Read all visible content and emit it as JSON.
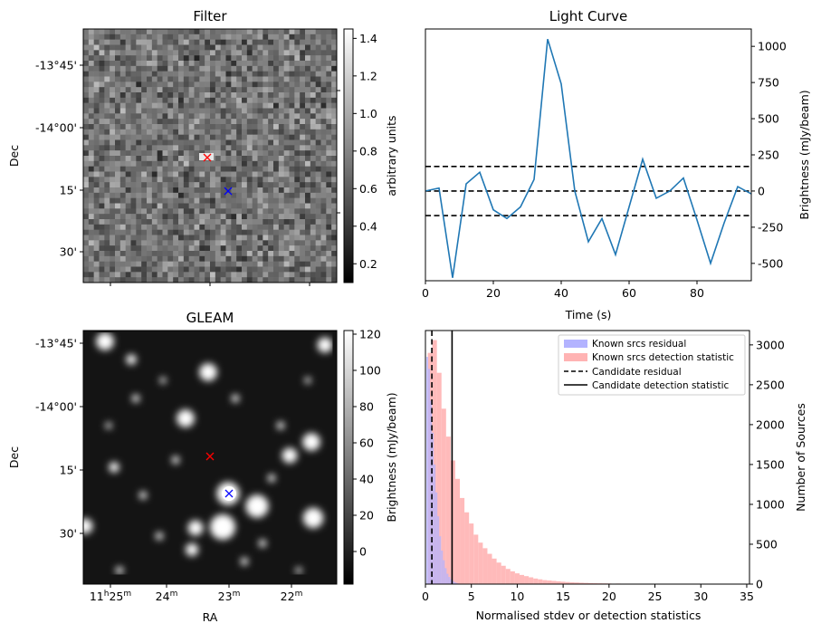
{
  "colors": {
    "lightcurve": "#1f77b4",
    "known_residual": "#b3b3ff",
    "known_detection": "#ffb3b3",
    "red_marker": "#ff0000",
    "blue_marker": "#0000ff"
  },
  "chart_data": [
    {
      "id": "filter",
      "type": "heatmap",
      "title": "Filter",
      "ylabel": "Dec",
      "xlabel": "",
      "yticks": [
        "-13°45'",
        "-14°00'",
        "15'",
        "30'"
      ],
      "xticks": [],
      "colormap": "gray",
      "colorbar": {
        "label": "arbitrary units",
        "range": [
          0.1,
          1.45
        ],
        "ticks": [
          "0.2",
          "0.4",
          "0.6",
          "0.8",
          "1.0",
          "1.2",
          "1.4"
        ]
      },
      "markers": [
        {
          "symbol": "x",
          "color": "red"
        },
        {
          "symbol": "x",
          "color": "blue"
        }
      ]
    },
    {
      "id": "lightcurve",
      "type": "line",
      "title": "Light Curve",
      "xlabel": "Time (s)",
      "ylabel": "Brightness (mJy/beam)",
      "xlim": [
        0,
        96
      ],
      "ylim": [
        -620,
        1120
      ],
      "xticks": [
        "0",
        "20",
        "40",
        "60",
        "80"
      ],
      "yticks": [
        "-500",
        "-250",
        "0",
        "250",
        "500",
        "750",
        "1000"
      ],
      "x": [
        0,
        4,
        8,
        12,
        16,
        20,
        24,
        28,
        32,
        36,
        40,
        44,
        48,
        52,
        56,
        60,
        64,
        68,
        72,
        76,
        80,
        84,
        88,
        92,
        96
      ],
      "y": [
        0,
        20,
        -600,
        50,
        130,
        -130,
        -190,
        -110,
        80,
        1050,
        740,
        0,
        -350,
        -190,
        -440,
        -110,
        220,
        -50,
        0,
        90,
        -200,
        -500,
        -220,
        30,
        -20
      ],
      "hlines": [
        {
          "y": 170,
          "style": "dashed"
        },
        {
          "y": 0,
          "style": "dashed"
        },
        {
          "y": -170,
          "style": "dashed"
        }
      ]
    },
    {
      "id": "gleam",
      "type": "heatmap",
      "title": "GLEAM",
      "xlabel": "RA",
      "ylabel": "Dec",
      "yticks": [
        "-13°45'",
        "-14°00'",
        "15'",
        "30'"
      ],
      "xticks": [
        {
          "main": "11",
          "sup1": "h",
          "mid": "25",
          "sup2": "m"
        },
        {
          "main": "24",
          "sup2": "m"
        },
        {
          "main": "23",
          "sup2": "m"
        },
        {
          "main": "22",
          "sup2": "m"
        }
      ],
      "colormap": "gray",
      "colorbar": {
        "label": "Brightness (mJy/beam)",
        "range": [
          -18,
          122
        ],
        "ticks": [
          "0",
          "20",
          "40",
          "60",
          "80",
          "100",
          "120"
        ]
      },
      "markers": [
        {
          "symbol": "x",
          "color": "red"
        },
        {
          "symbol": "x",
          "color": "blue",
          "circled": true
        }
      ]
    },
    {
      "id": "histogram",
      "type": "bar",
      "xlabel": "Normalised stdev or detection statistics",
      "ylabel": "Number of Sources",
      "xlim": [
        0,
        35.3
      ],
      "ylim": [
        0,
        3180
      ],
      "xticks": [
        "0",
        "5",
        "10",
        "15",
        "20",
        "25",
        "30",
        "35"
      ],
      "yticks": [
        "0",
        "500",
        "1000",
        "1500",
        "2000",
        "2500",
        "3000"
      ],
      "bin_width": 0.5,
      "series": [
        {
          "name": "Known srcs residual",
          "bins": [
            [
              0.2,
              2850
            ],
            [
              0.4,
              2700
            ],
            [
              0.6,
              2300
            ],
            [
              0.8,
              1900
            ],
            [
              1.0,
              1500
            ],
            [
              1.2,
              1150
            ],
            [
              1.4,
              850
            ],
            [
              1.6,
              600
            ],
            [
              1.8,
              420
            ],
            [
              2.0,
              300
            ],
            [
              2.2,
              200
            ],
            [
              2.4,
              130
            ],
            [
              2.6,
              90
            ],
            [
              2.8,
              60
            ],
            [
              3.0,
              40
            ],
            [
              3.2,
              25
            ],
            [
              3.4,
              15
            ],
            [
              3.6,
              8
            ]
          ],
          "width": 0.2
        },
        {
          "name": "Known srcs detection statistic",
          "bins": [
            [
              0.5,
              2900
            ],
            [
              1.0,
              3060
            ],
            [
              1.5,
              2650
            ],
            [
              2.0,
              2200
            ],
            [
              2.5,
              1850
            ],
            [
              3.0,
              1550
            ],
            [
              3.5,
              1320
            ],
            [
              4.0,
              1080
            ],
            [
              4.5,
              900
            ],
            [
              5.0,
              760
            ],
            [
              5.5,
              620
            ],
            [
              6.0,
              520
            ],
            [
              6.5,
              450
            ],
            [
              7.0,
              380
            ],
            [
              7.5,
              320
            ],
            [
              8.0,
              270
            ],
            [
              8.5,
              230
            ],
            [
              9.0,
              190
            ],
            [
              9.5,
              160
            ],
            [
              10.0,
              135
            ],
            [
              10.5,
              115
            ],
            [
              11.0,
              100
            ],
            [
              11.5,
              85
            ],
            [
              12.0,
              70
            ],
            [
              12.5,
              60
            ],
            [
              13.0,
              50
            ],
            [
              13.5,
              45
            ],
            [
              14.0,
              40
            ],
            [
              14.5,
              35
            ],
            [
              15.0,
              30
            ],
            [
              15.5,
              26
            ],
            [
              16.0,
              22
            ],
            [
              16.5,
              20
            ],
            [
              17.0,
              17
            ],
            [
              17.5,
              15
            ],
            [
              18.0,
              13
            ],
            [
              18.5,
              11
            ],
            [
              19.0,
              10
            ],
            [
              19.5,
              9
            ],
            [
              20.0,
              8
            ],
            [
              21.0,
              7
            ],
            [
              22.0,
              6
            ],
            [
              23.0,
              5
            ],
            [
              24.0,
              5
            ],
            [
              25.0,
              4
            ],
            [
              26.0,
              4
            ],
            [
              27.0,
              3
            ],
            [
              28.0,
              3
            ],
            [
              30.0,
              2
            ],
            [
              33.0,
              2
            ],
            [
              35.0,
              1
            ]
          ],
          "width": 0.5
        }
      ],
      "vlines": [
        {
          "name": "Candidate residual",
          "x": 0.7,
          "style": "dashed"
        },
        {
          "name": "Candidate detection statistic",
          "x": 2.9,
          "style": "solid"
        }
      ],
      "legend_position": "top-right"
    }
  ]
}
